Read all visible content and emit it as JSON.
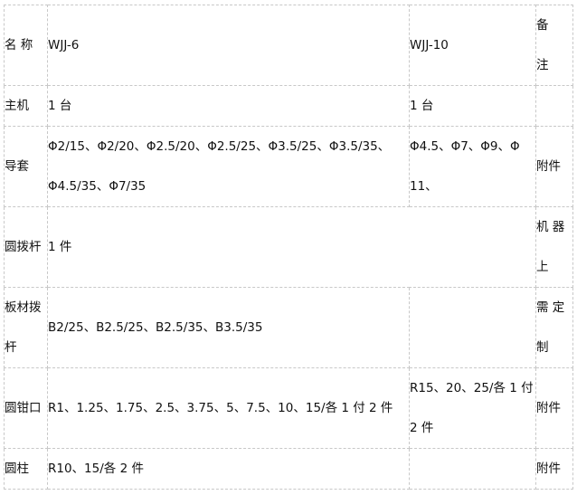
{
  "table": {
    "header": {
      "name": "名 称",
      "model1": "WJJ-6",
      "model2": "WJJ-10",
      "remark": "备注"
    },
    "rows": [
      {
        "name": "主机",
        "model1": "1 台",
        "model2": "1 台",
        "remark": ""
      },
      {
        "name": "导套",
        "model1": "Φ2/15、Φ2/20、Φ2.5/20、Φ2.5/25、Φ3.5/25、Φ3.5/35、",
        "model1_line2": "Φ4.5/35、Φ7/35",
        "model2": "Φ4.5、Φ7、Φ9、Φ",
        "model2_line2": "11、",
        "remark": "附件"
      },
      {
        "name": "圆拨杆",
        "model1": "1 件",
        "remark": "机 器",
        "remark_line2": "上"
      },
      {
        "name": "板材拨",
        "name_line2": "杆",
        "model1": "B2/25、B2.5/25、B2.5/35、B3.5/35",
        "model2": "",
        "remark": "需 定",
        "remark_line2": "制"
      },
      {
        "name": "圆钳口",
        "model1": "R1、1.25、1.75、2.5、3.75、5、7.5、10、15/各 1 付 2 件",
        "model2": "R15、20、25/各 1 付",
        "model2_line2": "2 件",
        "remark": "附件"
      },
      {
        "name": "圆柱",
        "model1": "R10、15/各 2 件",
        "model2": "",
        "remark": "附件"
      }
    ]
  }
}
